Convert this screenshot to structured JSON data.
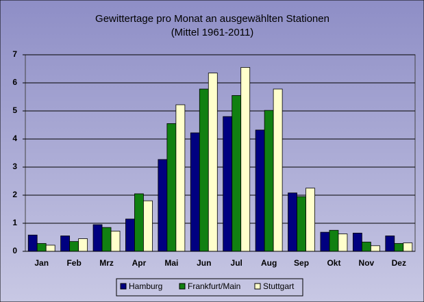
{
  "chart_data": {
    "type": "bar",
    "title": "Gewittertage pro Monat an ausgewählten Stationen",
    "subtitle": "(Mittel 1961-2011)",
    "categories": [
      "Jan",
      "Feb",
      "Mrz",
      "Apr",
      "Mai",
      "Jun",
      "Jul",
      "Aug",
      "Sep",
      "Okt",
      "Nov",
      "Dez"
    ],
    "series": [
      {
        "name": "Hamburg",
        "color": "#000080",
        "values": [
          0.58,
          0.55,
          0.95,
          1.15,
          3.27,
          4.22,
          4.8,
          4.32,
          2.08,
          0.68,
          0.65,
          0.55
        ]
      },
      {
        "name": "Frankfurt/Main",
        "color": "#118011",
        "values": [
          0.28,
          0.35,
          0.85,
          2.05,
          4.55,
          5.78,
          5.55,
          5.02,
          1.95,
          0.75,
          0.33,
          0.28
        ]
      },
      {
        "name": "Stuttgart",
        "color": "#ffffcc",
        "values": [
          0.22,
          0.45,
          0.72,
          1.8,
          5.22,
          6.35,
          6.55,
          5.78,
          2.25,
          0.62,
          0.2,
          0.3
        ]
      }
    ],
    "ylim": [
      0,
      7
    ],
    "yticks": [
      0,
      1,
      2,
      3,
      4,
      5,
      6,
      7
    ],
    "grid": true,
    "legend": "bottom"
  }
}
